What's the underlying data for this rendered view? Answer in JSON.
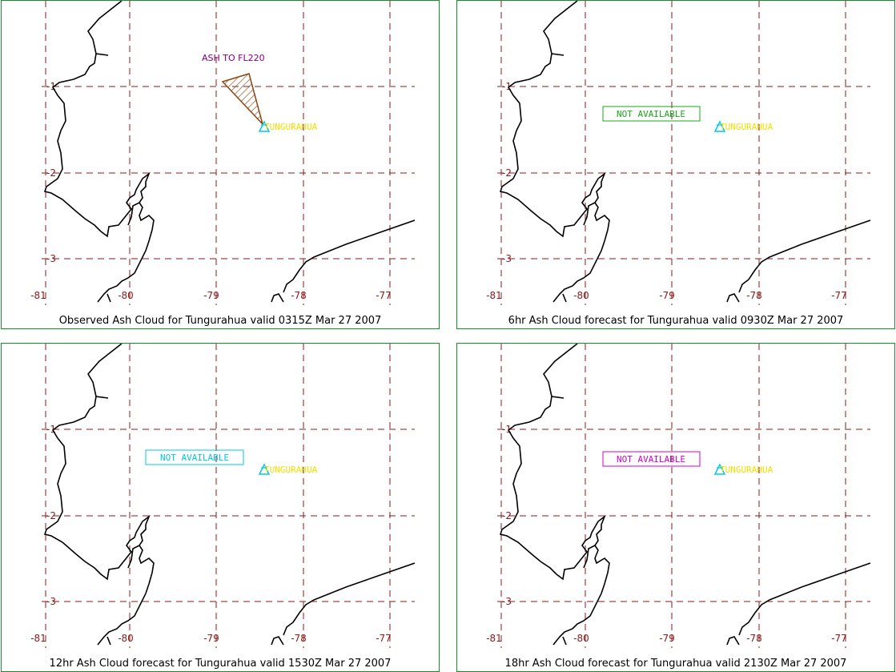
{
  "panels": [
    {
      "caption": "Observed Ash Cloud for Tungurahua valid 0315Z Mar 27 2007",
      "volcano_label": "TUNGURAHUA",
      "ash_label": "ASH TO FL220",
      "not_available": ""
    },
    {
      "caption": "6hr Ash Cloud forecast for Tungurahua valid 0930Z Mar 27 2007",
      "volcano_label": "TUNGURAHUA",
      "ash_label": "",
      "not_available": "NOT AVAILABLE"
    },
    {
      "caption": "12hr Ash Cloud forecast for Tungurahua valid 1530Z Mar 27 2007",
      "volcano_label": "TUNGURAHUA",
      "ash_label": "",
      "not_available": "NOT AVAILABLE"
    },
    {
      "caption": "18hr Ash Cloud forecast for Tungurahua valid 2130Z Mar 27 2007",
      "volcano_label": "TUNGURAHUA",
      "ash_label": "",
      "not_available": "NOT AVAILABLE"
    }
  ],
  "lon_labels": [
    "-81",
    "-80",
    "-79",
    "-78",
    "-77"
  ],
  "lat_labels": [
    "-1",
    "-2",
    "-3"
  ],
  "colors": {
    "frame": "#1a8a2a",
    "grid": "#8b1a1a",
    "coast": "#000000",
    "volcano": "#f0e000",
    "volcano_icon": "#00c8e6",
    "ash_label": "#800080",
    "ash_polygon": "#8b4513",
    "na_panel1": "#1aa81a",
    "na_panel2": "#00c8e6",
    "na_panel3": "#d000d0"
  }
}
